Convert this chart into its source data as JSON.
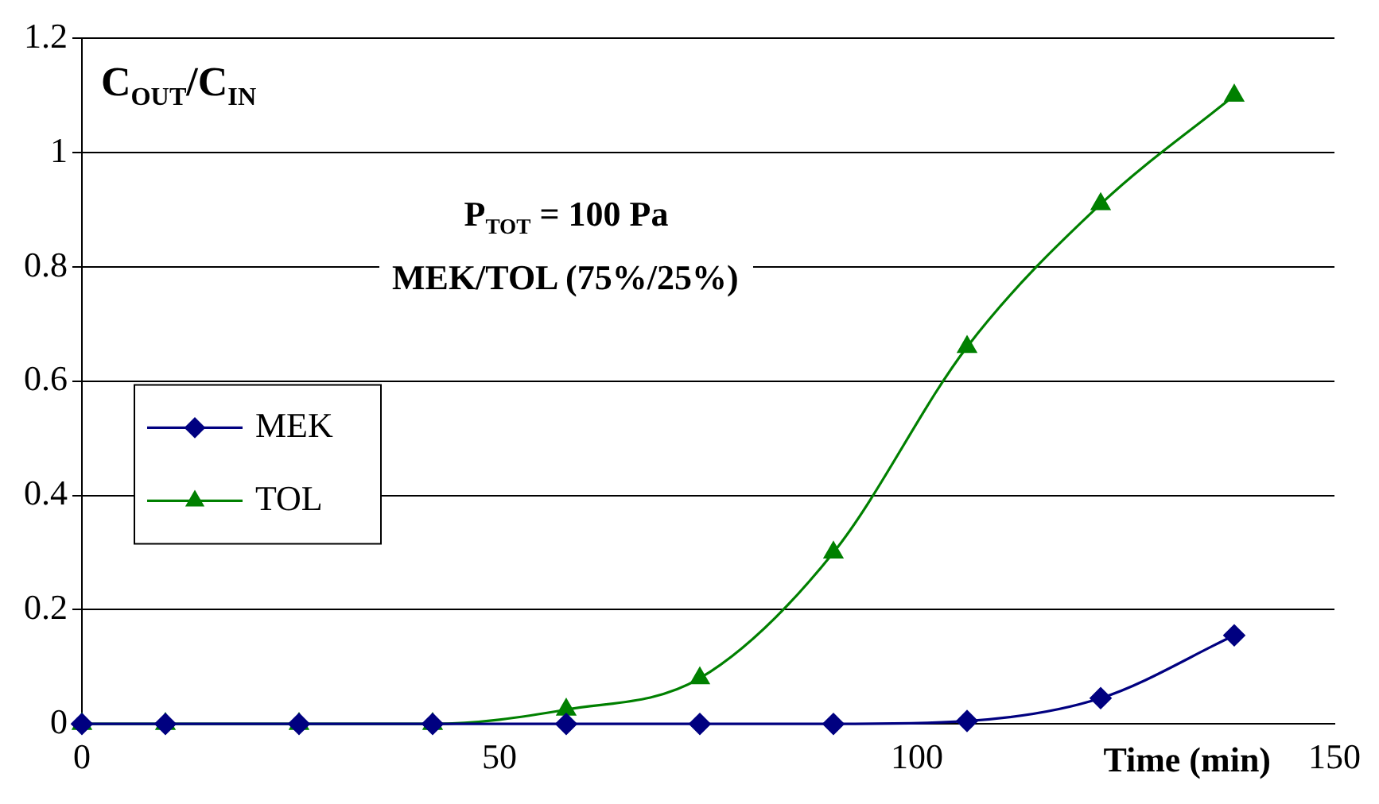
{
  "chart_data": {
    "type": "line",
    "title": "C$_{OUT}$/C$_{IN}$",
    "xlabel": "Time (min)",
    "annotations": [
      "P$_{TOT}$ = 100 Pa",
      "MEK/TOL (75%/25%)"
    ],
    "x": [
      0,
      10,
      26,
      42,
      58,
      74,
      90,
      106,
      122,
      138
    ],
    "series": [
      {
        "name": "MEK",
        "color": "#000080",
        "marker": "diamond",
        "values": [
          0,
          0,
          0,
          0,
          0,
          0,
          0,
          0.005,
          0.045,
          0.155
        ]
      },
      {
        "name": "TOL",
        "color": "#008000",
        "marker": "triangle",
        "values": [
          0,
          0,
          0,
          0,
          0.025,
          0.08,
          0.3,
          0.66,
          0.91,
          1.1
        ]
      }
    ],
    "xlim": [
      0,
      150
    ],
    "xticks": [
      0,
      50,
      100,
      150
    ],
    "ylim": [
      0,
      1.2
    ],
    "yticks": [
      0,
      0.2,
      0.4,
      0.6,
      0.8,
      1,
      1.2
    ],
    "grid": "y",
    "legend": "center left"
  }
}
